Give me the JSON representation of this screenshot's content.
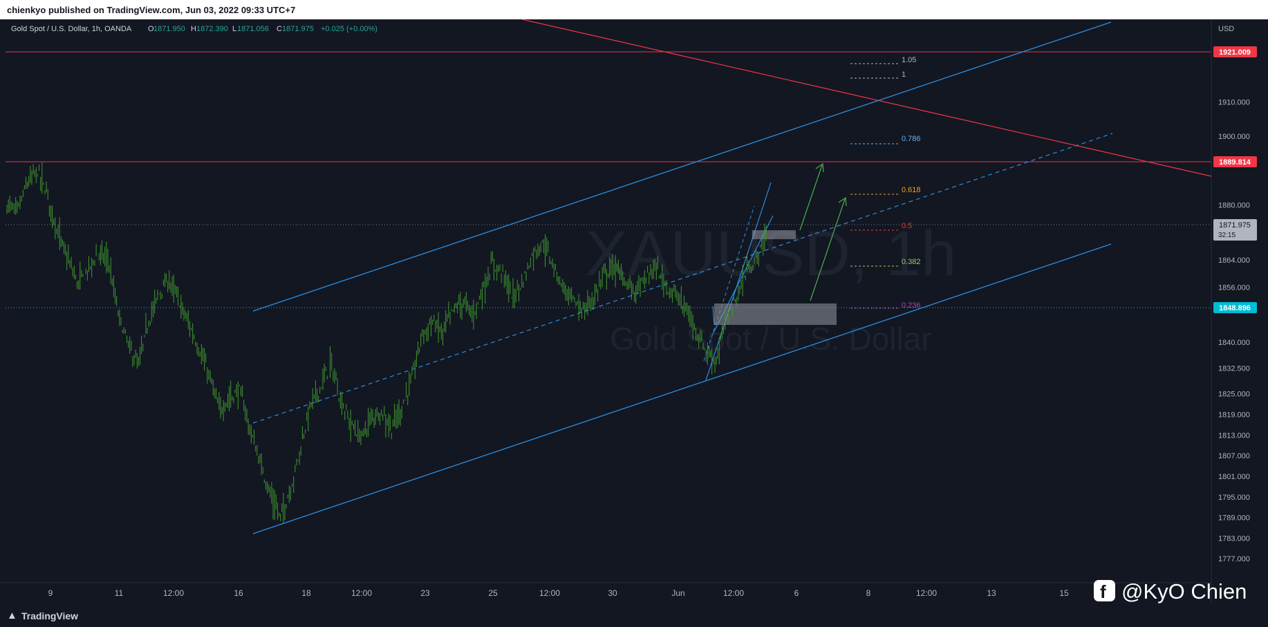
{
  "header": {
    "publisher_text": "chienkyo published on TradingView.com, Jun 03, 2022 09:33 UTC+7"
  },
  "footer": {
    "brand_label": "TradingView",
    "brand_icon": "tradingview-logo-icon"
  },
  "legend": {
    "symbol_text": "Gold Spot / U.S. Dollar, 1h, OANDA",
    "open_key": "O",
    "open_value": "1871.950",
    "high_key": "H",
    "high_value": "1872.390",
    "low_key": "L",
    "low_value": "1871.056",
    "close_key": "C",
    "close_value": "1871.975",
    "change_text": "+0.025 (+0.00%)"
  },
  "watermark": {
    "symbol": "XAUUSD, 1h",
    "name": "Gold Spot / U.S. Dollar"
  },
  "signature": {
    "icon": "facebook-icon",
    "text": "@KyO Chien"
  },
  "colors": {
    "background": "#131722",
    "up": "#26a69a",
    "bar": "#3f9a2e",
    "price_label": "#787b86",
    "resistance": "#f23645",
    "channel": "#2d8fe0",
    "cyan_level": "#00bcd4",
    "arrow": "#4caf50"
  },
  "chart_data": {
    "type": "ohlc",
    "instrument": "XAUUSD",
    "timeframe": "1h",
    "currency_label": "USD",
    "y_range": [
      1770,
      1934
    ],
    "y_ticks": [
      "1910.000",
      "1900.000",
      "1880.000",
      "1864.000",
      "1856.000",
      "1840.000",
      "1832.500",
      "1825.000",
      "1819.000",
      "1813.000",
      "1807.000",
      "1801.000",
      "1795.000",
      "1789.000",
      "1783.000",
      "1777.000"
    ],
    "x_ticks": [
      "9",
      "11",
      "12:00",
      "16",
      "18",
      "12:00",
      "23",
      "25",
      "12:00",
      "30",
      "Jun",
      "12:00",
      "6",
      "8",
      "12:00",
      "13",
      "15"
    ],
    "price_path": [
      1880,
      1878,
      1886,
      1890,
      1883,
      1872,
      1864,
      1857,
      1861,
      1866,
      1864,
      1848,
      1839,
      1833,
      1846,
      1854,
      1858,
      1852,
      1845,
      1838,
      1830,
      1820,
      1824,
      1826,
      1815,
      1805,
      1796,
      1789,
      1797,
      1809,
      1822,
      1827,
      1834,
      1823,
      1816,
      1812,
      1818,
      1820,
      1815,
      1821,
      1829,
      1842,
      1846,
      1843,
      1849,
      1852,
      1848,
      1855,
      1863,
      1860,
      1853,
      1858,
      1866,
      1869,
      1862,
      1856,
      1852,
      1849,
      1853,
      1860,
      1862,
      1858,
      1855,
      1858,
      1862,
      1857,
      1854,
      1850,
      1844,
      1838,
      1834,
      1846,
      1852,
      1860,
      1864,
      1871
    ],
    "horizontal_levels": [
      {
        "label": "1921.009",
        "price": 1921.009,
        "color": "#f23645"
      },
      {
        "label": "1889.814",
        "price": 1889.814,
        "color": "#f23645"
      },
      {
        "label": "1871.975",
        "price": 1871.975,
        "color": "#787b86",
        "countdown": "32:15"
      },
      {
        "label": "1848.896",
        "price": 1848.896,
        "color": "#00bcd4"
      }
    ],
    "fibonacci": [
      {
        "label": "1.05",
        "color": "#b2b5be"
      },
      {
        "label": "1",
        "color": "#b2b5be"
      },
      {
        "label": "0.786",
        "color": "#64b5f6"
      },
      {
        "label": "0.618",
        "color": "#f7a21b"
      },
      {
        "label": "0.5",
        "color": "#e53935"
      },
      {
        "label": "0.382",
        "color": "#9ccc65"
      },
      {
        "label": "0.236",
        "color": "#ab47bc"
      }
    ]
  }
}
